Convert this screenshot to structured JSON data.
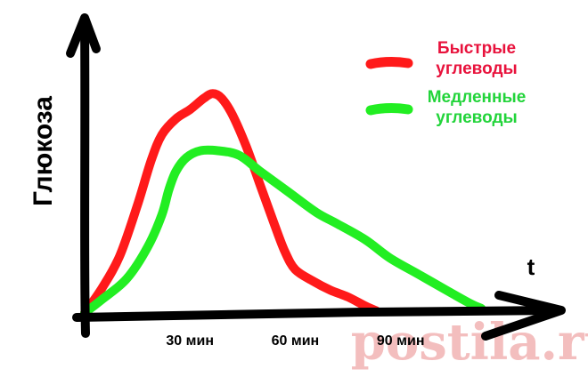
{
  "chart_data": {
    "type": "line",
    "title": "",
    "ylabel": "Глюкоза",
    "xlabel": "t",
    "xlim": [
      0,
      118
    ],
    "ylim": [
      0,
      100
    ],
    "x_ticks": [
      {
        "value": 30,
        "label": "30 мин"
      },
      {
        "value": 60,
        "label": "60 мин"
      },
      {
        "value": 90,
        "label": "90 мин"
      }
    ],
    "series": [
      {
        "name": "Быстрые углеводы",
        "color": "#ff1a1a",
        "points": [
          [
            0,
            0
          ],
          [
            5,
            11
          ],
          [
            10,
            25
          ],
          [
            15,
            47
          ],
          [
            19,
            67
          ],
          [
            22,
            78
          ],
          [
            26,
            85
          ],
          [
            30,
            89
          ],
          [
            34,
            94
          ],
          [
            36.5,
            96
          ],
          [
            39,
            94
          ],
          [
            42,
            87
          ],
          [
            46,
            73
          ],
          [
            50,
            56
          ],
          [
            54,
            39
          ],
          [
            57,
            27
          ],
          [
            60,
            19
          ],
          [
            65,
            14
          ],
          [
            70,
            10
          ],
          [
            75,
            7
          ],
          [
            80,
            3
          ],
          [
            83,
            1
          ]
        ]
      },
      {
        "name": "Медленные углеводы",
        "color": "#22ee22",
        "points": [
          [
            0,
            0
          ],
          [
            5,
            6
          ],
          [
            12,
            15
          ],
          [
            18,
            29
          ],
          [
            22,
            43
          ],
          [
            24,
            54
          ],
          [
            26,
            62
          ],
          [
            29,
            68
          ],
          [
            33,
            71
          ],
          [
            38,
            71
          ],
          [
            44,
            69
          ],
          [
            50,
            62
          ],
          [
            58,
            53
          ],
          [
            66,
            44
          ],
          [
            72,
            39
          ],
          [
            80,
            32
          ],
          [
            87,
            24
          ],
          [
            95,
            17
          ],
          [
            103,
            10
          ],
          [
            110,
            4
          ],
          [
            113,
            2
          ]
        ]
      }
    ],
    "legend_position": "top-right",
    "legend": [
      {
        "label": "Быстрые\nуглеводы",
        "color": "#e8123c",
        "line": "#ff1a1a"
      },
      {
        "label": "Медленные\nуглеводы",
        "color": "#22d43a",
        "line": "#22ee22"
      }
    ]
  },
  "watermark": {
    "text": "postila.ru",
    "color": "#f2b3b3"
  }
}
